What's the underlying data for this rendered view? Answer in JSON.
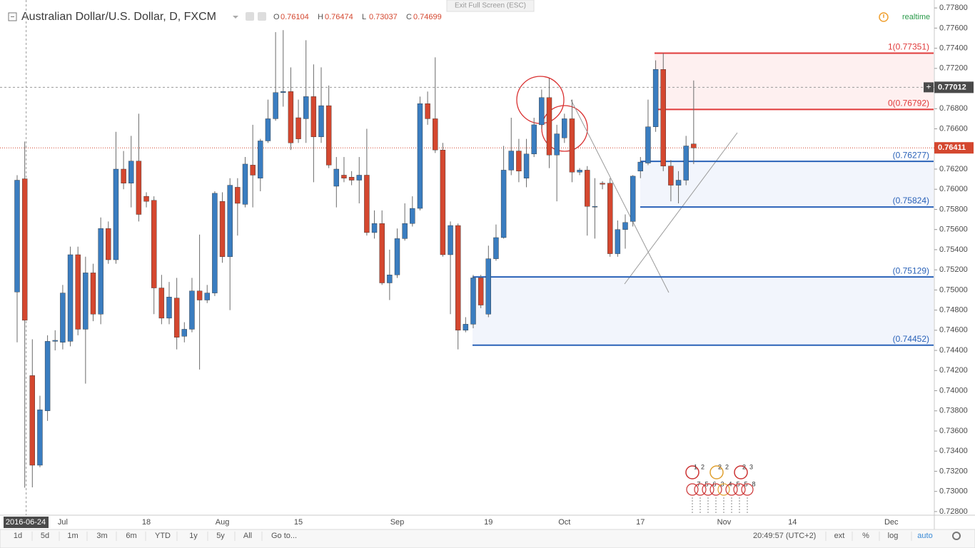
{
  "header": {
    "title": "Australian Dollar/U.S. Dollar, D, FXCM",
    "ohlc": [
      {
        "label": "O",
        "value": 0.76104
      },
      {
        "label": "H",
        "value": 0.76474
      },
      {
        "label": "L",
        "value": 0.73037
      },
      {
        "label": "C",
        "value": 0.74699
      }
    ],
    "exit_fullscreen": "Exit Full Screen (ESC)",
    "status": "realtime"
  },
  "chart_data": {
    "type": "candlestick",
    "categories": [
      null,
      null,
      null,
      null,
      null,
      null,
      "Jul",
      null,
      null,
      null,
      null,
      null,
      null,
      null,
      null,
      null,
      null,
      "18",
      null,
      null,
      null,
      null,
      null,
      null,
      null,
      null,
      null,
      "Aug",
      null,
      null,
      null,
      null,
      null,
      null,
      null,
      null,
      null,
      "15",
      null,
      null,
      null,
      null,
      null,
      null,
      null,
      null,
      null,
      null,
      null,
      null,
      "Sep",
      null,
      null,
      null,
      null,
      null,
      null,
      null,
      null,
      null,
      null,
      null,
      "19",
      null,
      null,
      null,
      null,
      null,
      null,
      null,
      null,
      null,
      "Oct",
      null,
      null,
      null,
      null,
      null,
      null,
      null,
      null,
      null,
      "17",
      null,
      null,
      null,
      null,
      null,
      null,
      null,
      null,
      null,
      null,
      "Nov",
      null,
      null,
      null,
      null,
      null,
      null,
      null,
      null,
      "14",
      null,
      null,
      null,
      null,
      null,
      null,
      null,
      null,
      null,
      null,
      null,
      null,
      "Dec",
      null,
      null,
      null
    ],
    "open": [
      0.7498,
      0.76104,
      0.7415,
      0.7326,
      0.738,
      0.7449,
      0.7448,
      0.7449,
      0.7535,
      0.7461,
      0.7517,
      0.7476,
      0.7561,
      0.753,
      0.762,
      0.7606,
      0.7628,
      0.7593,
      0.7589,
      0.7502,
      0.7472,
      0.7492,
      0.7454,
      0.7461,
      0.7499,
      0.749,
      0.7497,
      0.7588,
      0.7533,
      0.7602,
      0.7585,
      0.7624,
      0.7611,
      0.7648,
      0.767,
      0.7696,
      0.7697,
      0.7671,
      0.767,
      0.7692,
      0.7652,
      0.7683,
      0.7603,
      0.7614,
      0.7612,
      0.7609,
      0.7614,
      0.7557,
      0.7566,
      0.7507,
      0.7515,
      0.7551,
      0.7566,
      0.7581,
      0.7685,
      0.767,
      0.7639,
      0.7535,
      0.7564,
      0.746,
      0.7466,
      0.7512,
      0.7476,
      0.7531,
      0.7552,
      0.7619,
      0.7638,
      0.7611,
      0.7635,
      0.7664,
      0.7691,
      0.7634,
      0.7651,
      0.767,
      0.7617,
      0.7619,
      0.7583,
      0.7606,
      0.7606,
      0.7536,
      0.756,
      0.7568,
      0.7618,
      0.7626,
      0.7662,
      0.7719,
      0.7623,
      0.7604,
      0.7609,
      0.7645,
      null,
      null,
      null,
      null,
      null,
      null,
      null,
      null,
      null,
      null,
      null,
      null,
      null,
      null,
      null,
      null,
      null,
      null,
      null,
      null,
      null,
      null,
      null,
      null,
      null,
      null,
      null,
      null,
      null
    ],
    "high": [
      0.7614,
      0.76474,
      0.7451,
      0.7395,
      0.7455,
      0.746,
      0.7505,
      0.7543,
      0.7543,
      0.7533,
      0.7526,
      0.7572,
      0.7568,
      0.7657,
      0.7638,
      0.7653,
      0.7675,
      0.7597,
      0.7593,
      0.7515,
      0.7508,
      0.7512,
      0.7468,
      0.7512,
      0.7555,
      0.7505,
      0.7598,
      0.7597,
      0.7611,
      0.7611,
      0.7632,
      0.7664,
      0.765,
      0.7689,
      0.7756,
      0.7758,
      0.7721,
      0.7689,
      0.7748,
      0.7724,
      0.7721,
      0.7703,
      0.7632,
      0.7632,
      0.7618,
      0.7632,
      0.766,
      0.7579,
      0.7579,
      0.754,
      0.7561,
      0.7586,
      0.7593,
      0.7692,
      0.7697,
      0.7731,
      0.7646,
      0.7568,
      0.7566,
      0.7473,
      0.7515,
      0.7515,
      0.7544,
      0.7565,
      0.7643,
      0.7671,
      0.765,
      0.765,
      0.7671,
      0.7699,
      0.771,
      0.7664,
      0.7675,
      0.7689,
      0.7621,
      0.7623,
      0.7611,
      0.7608,
      0.7611,
      0.7569,
      0.7575,
      0.7614,
      0.7632,
      0.7689,
      0.7728,
      0.7735,
      0.7629,
      0.7618,
      0.7653,
      0.7708,
      null,
      null,
      null,
      null,
      null,
      null,
      null,
      null,
      null,
      null,
      null,
      null,
      null,
      null,
      null,
      null,
      null,
      null,
      null,
      null,
      null,
      null,
      null,
      null,
      null,
      null,
      null,
      null,
      null
    ],
    "low": [
      0.7448,
      0.73037,
      0.7304,
      0.7324,
      0.737,
      0.744,
      0.7441,
      0.7444,
      0.7455,
      0.7407,
      0.7469,
      0.7466,
      0.7526,
      0.7526,
      0.76,
      0.7582,
      0.7568,
      0.7582,
      0.7476,
      0.7466,
      0.7466,
      0.7441,
      0.7448,
      0.7458,
      0.7421,
      0.7487,
      0.7494,
      0.7527,
      0.748,
      0.7554,
      0.7582,
      0.7582,
      0.7598,
      0.7646,
      0.7668,
      0.7682,
      0.7639,
      0.7646,
      0.7646,
      0.7607,
      0.7646,
      0.7621,
      0.7582,
      0.7607,
      0.7604,
      0.7586,
      0.7554,
      0.7551,
      0.7505,
      0.749,
      0.7512,
      0.7549,
      0.7563,
      0.7579,
      0.7664,
      0.7636,
      0.7533,
      0.7476,
      0.7441,
      0.7458,
      0.7462,
      0.7482,
      0.7473,
      0.7529,
      0.7551,
      0.7614,
      0.7607,
      0.7602,
      0.7632,
      0.766,
      0.7621,
      0.7588,
      0.7646,
      0.7607,
      0.7614,
      0.7554,
      0.7551,
      0.76,
      0.7533,
      0.7533,
      0.7541,
      0.7563,
      0.7611,
      0.7624,
      0.7657,
      0.7618,
      0.7588,
      0.7586,
      0.7604,
      0.7625,
      null,
      null,
      null,
      null,
      null,
      null,
      null,
      null,
      null,
      null,
      null,
      null,
      null,
      null,
      null,
      null,
      null,
      null,
      null,
      null,
      null,
      null,
      null,
      null,
      null,
      null,
      null,
      null,
      null
    ],
    "close": [
      0.7609,
      0.74699,
      0.7326,
      0.7381,
      0.7449,
      0.745,
      0.7497,
      0.7535,
      0.7461,
      0.7517,
      0.7476,
      0.7561,
      0.753,
      0.762,
      0.7606,
      0.7628,
      0.7575,
      0.7588,
      0.7502,
      0.7472,
      0.7493,
      0.7453,
      0.7461,
      0.7499,
      0.749,
      0.7497,
      0.7596,
      0.7533,
      0.7604,
      0.7586,
      0.7625,
      0.7614,
      0.7648,
      0.767,
      0.7696,
      0.7697,
      0.7646,
      0.765,
      0.7692,
      0.7652,
      0.7683,
      0.7624,
      0.762,
      0.7611,
      0.7609,
      0.7614,
      0.7557,
      0.7566,
      0.7507,
      0.7515,
      0.7551,
      0.7566,
      0.7581,
      0.7685,
      0.767,
      0.7639,
      0.7535,
      0.7564,
      0.746,
      0.7466,
      0.7512,
      0.7485,
      0.7531,
      0.7552,
      0.7619,
      0.7638,
      0.7618,
      0.7635,
      0.7664,
      0.7691,
      0.7634,
      0.7655,
      0.767,
      0.7617,
      0.7619,
      0.7583,
      0.7583,
      0.7605,
      0.7536,
      0.756,
      0.7567,
      0.7613,
      0.7627,
      0.7662,
      0.7719,
      0.7623,
      0.7604,
      0.7609,
      0.7643,
      0.76411,
      null,
      null,
      null,
      null,
      null,
      null,
      null,
      null,
      null,
      null,
      null,
      null,
      null,
      null,
      null,
      null,
      null,
      null,
      null,
      null,
      null,
      null,
      null,
      null,
      null,
      null,
      null,
      null,
      null
    ],
    "up_color": "#3a7dc0",
    "down_color": "#d4472f",
    "ylim": [
      0.72764,
      0.77879
    ],
    "yticks": [
      {
        "value": 0.778,
        "label": "0.77800"
      },
      {
        "value": 0.776,
        "label": "0.77600"
      },
      {
        "value": 0.774,
        "label": "0.77400"
      },
      {
        "value": 0.772,
        "label": "0.77200"
      },
      {
        "value": 0.77,
        "label": "0.77000"
      },
      {
        "value": 0.768,
        "label": "0.76800"
      },
      {
        "value": 0.766,
        "label": "0.76600"
      },
      {
        "value": 0.764,
        "label": "0.76400"
      },
      {
        "value": 0.762,
        "label": "0.76200"
      },
      {
        "value": 0.76,
        "label": "0.76000"
      },
      {
        "value": 0.758,
        "label": "0.75800"
      },
      {
        "value": 0.756,
        "label": "0.75600"
      },
      {
        "value": 0.754,
        "label": "0.75400"
      },
      {
        "value": 0.752,
        "label": "0.75200"
      },
      {
        "value": 0.75,
        "label": "0.75000"
      },
      {
        "value": 0.748,
        "label": "0.74800"
      },
      {
        "value": 0.746,
        "label": "0.74600"
      },
      {
        "value": 0.744,
        "label": "0.74400"
      },
      {
        "value": 0.742,
        "label": "0.74200"
      },
      {
        "value": 0.74,
        "label": "0.74000"
      },
      {
        "value": 0.738,
        "label": "0.73800"
      },
      {
        "value": 0.736,
        "label": "0.73600"
      },
      {
        "value": 0.734,
        "label": "0.73400"
      },
      {
        "value": 0.732,
        "label": "0.73200"
      },
      {
        "value": 0.73,
        "label": "0.73000"
      },
      {
        "value": 0.728,
        "label": "0.72800"
      }
    ],
    "grid": false,
    "last_price": 0.76411,
    "crosshair": {
      "date": "2016-06-24",
      "price": 0.77012
    },
    "fib_levels": [
      {
        "value": 0.77351,
        "label": "1(0.77351)",
        "color": "#e03a3a"
      },
      {
        "value": 0.76792,
        "label": "0(0.76792)",
        "color": "#e03a3a"
      },
      {
        "value": 0.76277,
        "label": "(0.76277)",
        "color": "#2a62b8"
      },
      {
        "value": 0.75824,
        "label": "(0.75824)",
        "color": "#2a62b8"
      },
      {
        "value": 0.75129,
        "label": "(0.75129)",
        "color": "#2a62b8"
      },
      {
        "value": 0.74452,
        "label": "(0.74452)",
        "color": "#2a62b8"
      }
    ]
  },
  "events": {
    "top": [
      "1",
      "2",
      "2",
      "2",
      "2",
      "3"
    ],
    "bottom": [
      "7",
      "5",
      "6",
      "3",
      "4",
      "5",
      "5",
      "8"
    ]
  },
  "toolbar": {
    "ranges": [
      "1d",
      "5d",
      "1m",
      "3m",
      "6m",
      "YTD",
      "1y",
      "5y",
      "All"
    ],
    "goto": "Go to...",
    "time": "20:49:57 (UTC+2)",
    "options": [
      "ext",
      "%",
      "log",
      "auto"
    ]
  }
}
